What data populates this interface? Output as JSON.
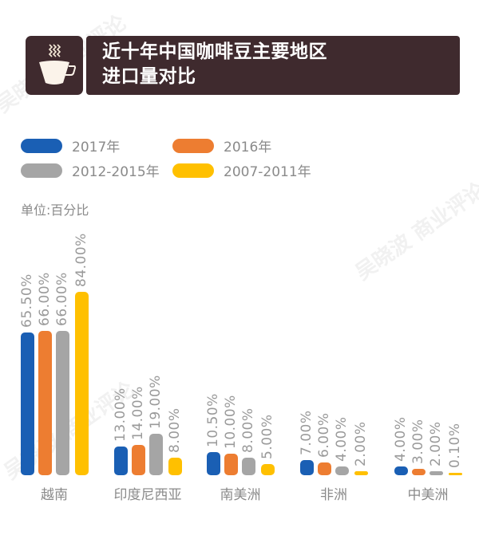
{
  "header": {
    "icon": "coffee-cup-icon",
    "title_line1": "近十年中国咖啡豆主要地区",
    "title_line2": "进口量对比"
  },
  "legend": [
    {
      "label": "2017年",
      "color": "#1a5fb4"
    },
    {
      "label": "2016年",
      "color": "#ed7d31"
    },
    {
      "label": "2012-2015年",
      "color": "#a5a5a5"
    },
    {
      "label": "2007-2011年",
      "color": "#ffc000"
    }
  ],
  "unit_label": "单位:百分比",
  "watermark": "吴晓波 商业评论",
  "chart_data": {
    "type": "bar",
    "title": "近十年中国咖啡豆主要地区进口量对比",
    "xlabel": "",
    "ylabel": "单位:百分比",
    "ylim": [
      0,
      90
    ],
    "grid": false,
    "legend_position": "top",
    "categories": [
      "越南",
      "印度尼西亚",
      "南美洲",
      "非洲",
      "中美洲"
    ],
    "series": [
      {
        "name": "2017年",
        "color": "#1a5fb4",
        "values": [
          65.5,
          13.0,
          10.5,
          7.0,
          4.0
        ],
        "labels": [
          "65.50%",
          "13.00%",
          "10.50%",
          "7.00%",
          "4.00%"
        ]
      },
      {
        "name": "2016年",
        "color": "#ed7d31",
        "values": [
          66.0,
          14.0,
          10.0,
          6.0,
          3.0
        ],
        "labels": [
          "66.00%",
          "14.00%",
          "10.00%",
          "6.00%",
          "3.00%"
        ]
      },
      {
        "name": "2012-2015年",
        "color": "#a5a5a5",
        "values": [
          66.0,
          19.0,
          8.0,
          4.0,
          2.0
        ],
        "labels": [
          "66.00%",
          "19.00%",
          "8.00%",
          "4.00%",
          "2.00%"
        ]
      },
      {
        "name": "2007-2011年",
        "color": "#ffc000",
        "values": [
          84.0,
          8.0,
          5.0,
          2.0,
          0.1
        ],
        "labels": [
          "84.00%",
          "8.00%",
          "5.00%",
          "2.00%",
          "0.10%"
        ]
      }
    ]
  }
}
